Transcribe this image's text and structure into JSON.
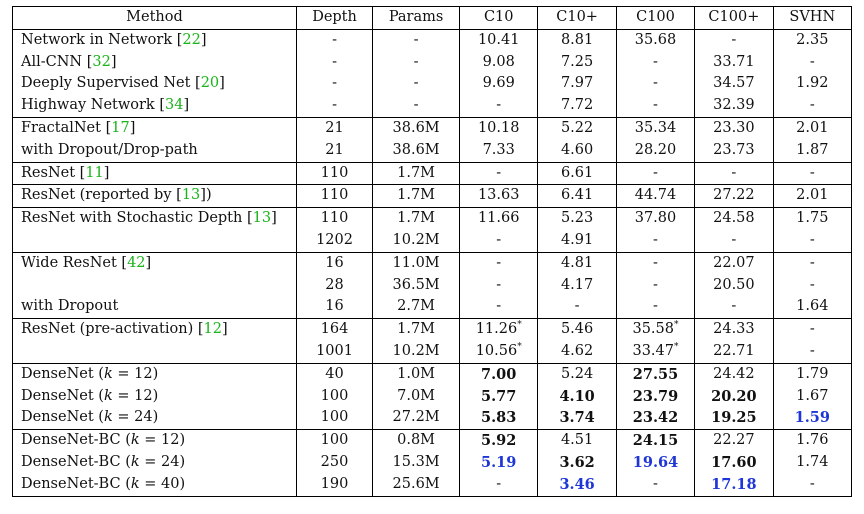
{
  "columns": [
    "Method",
    "Depth",
    "Params",
    "C10",
    "C10+",
    "C100",
    "C100+",
    "SVHN"
  ],
  "rows": [
    {
      "group_start": true,
      "method": "Network in Network",
      "ref": "22",
      "k": null,
      "depth": "-",
      "params": "-",
      "c10": "10.41",
      "c10p": "8.81",
      "c100": "35.68",
      "c100p": "-",
      "svhn": "2.35"
    },
    {
      "group_start": false,
      "method": "All-CNN",
      "ref": "32",
      "k": null,
      "depth": "-",
      "params": "-",
      "c10": "9.08",
      "c10p": "7.25",
      "c100": "-",
      "c100p": "33.71",
      "svhn": "-"
    },
    {
      "group_start": false,
      "method": "Deeply Supervised Net",
      "ref": "20",
      "k": null,
      "depth": "-",
      "params": "-",
      "c10": "9.69",
      "c10p": "7.97",
      "c100": "-",
      "c100p": "34.57",
      "svhn": "1.92"
    },
    {
      "group_start": false,
      "method": "Highway Network",
      "ref": "34",
      "k": null,
      "depth": "-",
      "params": "-",
      "c10": "-",
      "c10p": "7.72",
      "c100": "-",
      "c100p": "32.39",
      "svhn": "-"
    },
    {
      "group_start": true,
      "method": "FractalNet",
      "ref": "17",
      "k": null,
      "depth": "21",
      "params": "38.6M",
      "c10": "10.18",
      "c10p": "5.22",
      "c100": "35.34",
      "c100p": "23.30",
      "svhn": "2.01"
    },
    {
      "group_start": false,
      "method": "with Dropout/Drop-path",
      "ref": null,
      "k": null,
      "depth": "21",
      "params": "38.6M",
      "c10": "7.33",
      "c10p": "4.60",
      "c100": "28.20",
      "c100p": "23.73",
      "svhn": "1.87"
    },
    {
      "group_start": true,
      "method": "ResNet",
      "ref": "11",
      "k": null,
      "depth": "110",
      "params": "1.7M",
      "c10": "-",
      "c10p": "6.61",
      "c100": "-",
      "c100p": "-",
      "svhn": "-"
    },
    {
      "group_start": true,
      "method": "ResNet (reported by ",
      "ref": "13",
      "suffix": ")",
      "k": null,
      "depth": "110",
      "params": "1.7M",
      "c10": "13.63",
      "c10p": "6.41",
      "c100": "44.74",
      "c100p": "27.22",
      "svhn": "2.01"
    },
    {
      "group_start": true,
      "method": "ResNet with Stochastic Depth",
      "ref": "13",
      "k": null,
      "depth": "110",
      "params": "1.7M",
      "c10": "11.66",
      "c10p": "5.23",
      "c100": "37.80",
      "c100p": "24.58",
      "svhn": "1.75"
    },
    {
      "group_start": false,
      "method": "",
      "ref": null,
      "k": null,
      "depth": "1202",
      "params": "10.2M",
      "c10": "-",
      "c10p": "4.91",
      "c100": "-",
      "c100p": "-",
      "svhn": "-"
    },
    {
      "group_start": true,
      "method": "Wide ResNet",
      "ref": "42",
      "k": null,
      "depth": "16",
      "params": "11.0M",
      "c10": "-",
      "c10p": "4.81",
      "c100": "-",
      "c100p": "22.07",
      "svhn": "-"
    },
    {
      "group_start": false,
      "method": "",
      "ref": null,
      "k": null,
      "depth": "28",
      "params": "36.5M",
      "c10": "-",
      "c10p": "4.17",
      "c100": "-",
      "c100p": "20.50",
      "svhn": "-"
    },
    {
      "group_start": false,
      "method": "with Dropout",
      "ref": null,
      "k": null,
      "depth": "16",
      "params": "2.7M",
      "c10": "-",
      "c10p": "-",
      "c100": "-",
      "c100p": "-",
      "svhn": "1.64"
    },
    {
      "group_start": true,
      "method": "ResNet (pre-activation)",
      "ref": "12",
      "k": null,
      "depth": "164",
      "params": "1.7M",
      "c10": "11.26*",
      "c10p": "5.46",
      "c100": "35.58*",
      "c100p": "24.33",
      "svhn": "-"
    },
    {
      "group_start": false,
      "method": "",
      "ref": null,
      "k": null,
      "depth": "1001",
      "params": "10.2M",
      "c10": "10.56*",
      "c10p": "4.62",
      "c100": "33.47*",
      "c100p": "22.71",
      "svhn": "-"
    },
    {
      "group_start": true,
      "method": "DenseNet",
      "ref": null,
      "k": "12",
      "depth": "40",
      "params": "1.0M",
      "c10": "7.00",
      "c10p": "5.24",
      "c100": "27.55",
      "c100p": "24.42",
      "svhn": "1.79"
    },
    {
      "group_start": false,
      "method": "DenseNet",
      "ref": null,
      "k": "12",
      "depth": "100",
      "params": "7.0M",
      "c10": "5.77",
      "c10p": "4.10",
      "c100": "23.79",
      "c100p": "20.20",
      "svhn": "1.67"
    },
    {
      "group_start": false,
      "method": "DenseNet",
      "ref": null,
      "k": "24",
      "depth": "100",
      "params": "27.2M",
      "c10": "5.83",
      "c10p": "3.74",
      "c100": "23.42",
      "c100p": "19.25",
      "svhn": "1.59"
    },
    {
      "group_start": true,
      "method": "DenseNet-BC",
      "ref": null,
      "k": "12",
      "depth": "100",
      "params": "0.8M",
      "c10": "5.92",
      "c10p": "4.51",
      "c100": "24.15",
      "c100p": "22.27",
      "svhn": "1.76"
    },
    {
      "group_start": false,
      "method": "DenseNet-BC",
      "ref": null,
      "k": "24",
      "depth": "250",
      "params": "15.3M",
      "c10": "5.19",
      "c10p": "3.62",
      "c100": "19.64",
      "c100p": "17.60",
      "svhn": "1.74"
    },
    {
      "group_start": false,
      "method": "DenseNet-BC",
      "ref": null,
      "k": "40",
      "depth": "190",
      "params": "25.6M",
      "c10": "-",
      "c10p": "3.46",
      "c100": "-",
      "c100p": "17.18",
      "svhn": "-"
    }
  ],
  "styles": {
    "bold": [
      "15:c10",
      "15:c100",
      "16:c10",
      "16:c10p",
      "16:c100",
      "16:c100p",
      "17:c10",
      "17:c10p",
      "17:c100",
      "17:c100p",
      "18:c10",
      "18:c100",
      "19:c10p",
      "19:c100p"
    ],
    "blue": [
      "17:svhn",
      "19:c10",
      "19:c100",
      "20:c10p",
      "20:c100p"
    ]
  },
  "colors": {
    "reference": "#19b419",
    "best": "#1f36d6"
  }
}
